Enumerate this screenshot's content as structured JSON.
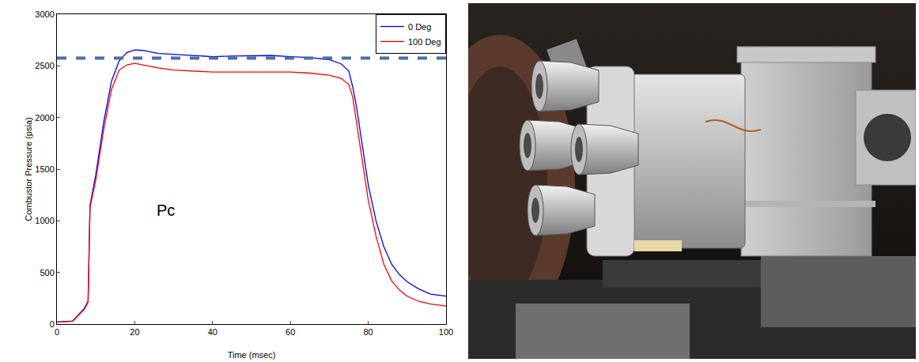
{
  "chart_data": {
    "type": "line",
    "x_label": "Time (msec)",
    "y_label": "Combustor Pressure (psia)",
    "x": [
      0,
      4,
      7,
      8,
      8.5,
      9,
      10,
      12,
      14,
      16,
      18,
      20,
      22,
      26,
      30,
      35,
      40,
      45,
      50,
      55,
      60,
      65,
      70,
      73,
      75,
      76,
      77,
      78,
      79,
      80,
      82,
      84,
      86,
      88,
      90,
      93,
      96,
      100
    ],
    "series": [
      {
        "name": "0 Deg",
        "color": "#0000ff",
        "values": [
          20,
          30,
          150,
          220,
          1150,
          1250,
          1450,
          1950,
          2350,
          2550,
          2630,
          2655,
          2650,
          2620,
          2610,
          2600,
          2590,
          2595,
          2600,
          2600,
          2590,
          2580,
          2560,
          2520,
          2450,
          2300,
          2100,
          1850,
          1600,
          1350,
          1000,
          750,
          580,
          480,
          410,
          340,
          290,
          270
        ]
      },
      {
        "name": "100 Deg",
        "color": "#ff0000",
        "values": [
          20,
          25,
          140,
          210,
          1130,
          1220,
          1400,
          1880,
          2270,
          2460,
          2510,
          2525,
          2510,
          2480,
          2460,
          2450,
          2440,
          2440,
          2440,
          2445,
          2440,
          2430,
          2410,
          2380,
          2320,
          2200,
          1950,
          1700,
          1450,
          1200,
          850,
          580,
          420,
          330,
          270,
          220,
          195,
          175
        ]
      }
    ],
    "xlim": [
      0,
      100
    ],
    "xticks": [
      0,
      20,
      40,
      60,
      80,
      100
    ],
    "ylim": [
      0,
      3000
    ],
    "yticks": [
      0,
      500,
      1000,
      1500,
      2000,
      2500,
      3000
    ],
    "reference_line": {
      "value": 2575,
      "color": "#4a6fa5",
      "line_style": "dash"
    },
    "annotations": [
      {
        "text": "Pc",
        "x": 28,
        "y": 1100
      }
    ],
    "legend": "upper right",
    "grid": false
  }
}
